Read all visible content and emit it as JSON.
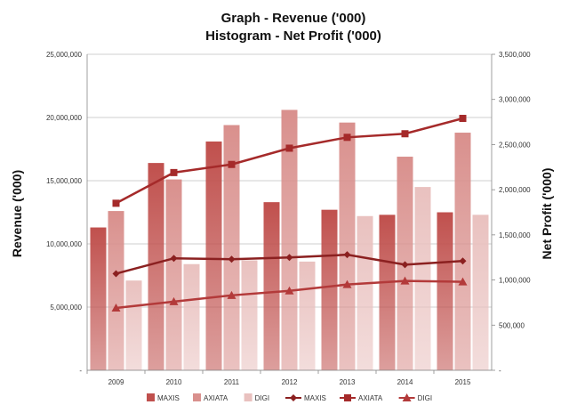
{
  "chart_data": {
    "type": "bar",
    "title": "Graph - Revenue ('000)",
    "subtitle": "Histogram - Net Profit ('000)",
    "ylabel_left": "Revenue ('000)",
    "ylabel_right": "Net Profit ('000)",
    "categories": [
      "2009",
      "2010",
      "2011",
      "2012",
      "2013",
      "2014",
      "2015"
    ],
    "ylim_left": [
      0,
      25000000
    ],
    "ylim_right": [
      0,
      3500000
    ],
    "yticks_left": [
      "-",
      "5,000,000",
      "10,000,000",
      "15,000,000",
      "20,000,000",
      "25,000,000"
    ],
    "yticks_right": [
      "-",
      "500,000",
      "1,000,000",
      "1,500,000",
      "2,000,000",
      "2,500,000",
      "3,000,000",
      "3,500,000"
    ],
    "grid": true,
    "legend_position": "bottom",
    "bar_series": [
      {
        "name": "MAXIS",
        "color": "#c0504d",
        "values": [
          11300000,
          16400000,
          18100000,
          13300000,
          12700000,
          12300000,
          12500000
        ]
      },
      {
        "name": "AXIATA",
        "color": "#d9908d",
        "values": [
          12600000,
          15100000,
          19400000,
          20600000,
          19600000,
          16900000,
          18800000
        ]
      },
      {
        "name": "DIGI",
        "color": "#e9c1bf",
        "values": [
          7100000,
          8400000,
          8700000,
          8600000,
          12200000,
          14500000,
          12300000
        ]
      }
    ],
    "line_series": [
      {
        "name": "MAXIS",
        "color": "#8b2020",
        "marker": "diamond",
        "values": [
          1070000,
          1240000,
          1230000,
          1250000,
          1280000,
          1170000,
          1210000
        ]
      },
      {
        "name": "AXIATA",
        "color": "#a52a2a",
        "marker": "square",
        "values": [
          1850000,
          2190000,
          2280000,
          2460000,
          2580000,
          2620000,
          2790000
        ]
      },
      {
        "name": "DIGI",
        "color": "#b33a3a",
        "marker": "triangle",
        "values": [
          690000,
          760000,
          830000,
          880000,
          950000,
          990000,
          980000
        ]
      }
    ]
  }
}
